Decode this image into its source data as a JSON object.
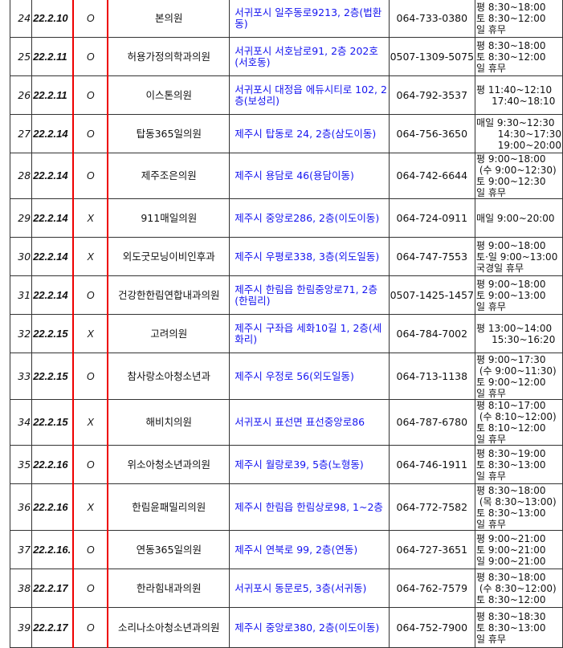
{
  "rows": [
    {
      "no": "24",
      "date": "22.2.10",
      "ox": "O",
      "name": "본의원",
      "address": "서귀포시  일주동로9213,  2층(법환동)",
      "phone": "064-733-0380",
      "hours": "평 8:30~18:00\n토 8:30~12:00\n일 휴무"
    },
    {
      "no": "25",
      "date": "22.2.11",
      "ox": "O",
      "name": "허용가정의학과의원",
      "address": "서귀포시 서호남로91, 2층 202호(서호동)",
      "phone": "0507-1309-5075",
      "hours": "평 8:30~18:00\n토 8:30~12:00\n일 휴무"
    },
    {
      "no": "26",
      "date": "22.2.11",
      "ox": "O",
      "name": "이스톤의원",
      "address": "서귀포시 대정읍 에듀시티로 102, 2층(보성리)",
      "phone": "064-792-3537",
      "hours": "평 11:40~12:10\n     17:40~18:10"
    },
    {
      "no": "27",
      "date": "22.2.14",
      "ox": "O",
      "name": "탑동365일의원",
      "address": "제주시 탑동로 24, 2층(삼도이동)",
      "phone": "064-756-3650",
      "hours": "매일 9:30~12:30\n       14:30~17:30\n       19:00~20:00"
    },
    {
      "no": "28",
      "date": "22.2.14",
      "ox": "O",
      "name": "제주조은의원",
      "address": "제주시 용담로 46(용담이동)",
      "phone": "064-742-6644",
      "hours": "평 9:00~18:00\n (수 9:00~12:30)\n토 9:00~12:30\n일 휴무"
    },
    {
      "no": "29",
      "date": "22.2.14",
      "ox": "X",
      "name": "911매일의원",
      "address": "제주시 중앙로286, 2층(이도이동)",
      "phone": "064-724-0911",
      "hours": "매일 9:00~20:00"
    },
    {
      "no": "30",
      "date": "22.2.14",
      "ox": "X",
      "name": "외도굿모닝이비인후과",
      "address": "제주시 우평로338, 3층(외도일동)",
      "phone": "064-747-7553",
      "hours": "평 9:00~18:00\n토·일 9:00~13:00\n국경일 휴무"
    },
    {
      "no": "31",
      "date": "22.2.14",
      "ox": "O",
      "name": "건강한한림연합내과의원",
      "address": "제주시 한림읍 한림중앙로71, 2층(한림리)",
      "phone": "0507-1425-1457",
      "hours": "평 9:00~18:00\n토 9:00~13:00\n일 휴무"
    },
    {
      "no": "32",
      "date": "22.2.15",
      "ox": "X",
      "name": "고려의원",
      "address": "제주시 구좌읍 세화10길 1, 2층(세화리)",
      "phone": "064-784-7002",
      "hours": "평 13:00~14:00\n     15:30~16:20"
    },
    {
      "no": "33",
      "date": "22.2.15",
      "ox": "O",
      "name": "참사랑소아청소년과",
      "address": "제주시 우정로 56(외도일동)",
      "phone": "064-713-1138",
      "hours": "평 9:00~17:30\n (수 9:00~11:30)\n토 9:00~12:00\n일 휴무"
    },
    {
      "no": "34",
      "date": "22.2.15",
      "ox": "X",
      "name": "해비치의원",
      "address": "서귀포시 표선면 표선중앙로86",
      "phone": "064-787-6780",
      "hours": "평 8:10~17:00\n (수 8:10~12:00)\n토 8:10~12:00\n일 휴무"
    },
    {
      "no": "35",
      "date": "22.2.16",
      "ox": "O",
      "name": "위소아청소년과의원",
      "address": "제주시 월랑로39, 5층(노형동)",
      "phone": "064-746-1911",
      "hours": "평 8:30~19:00\n토 8:30~13:00\n일 휴무"
    },
    {
      "no": "36",
      "date": "22.2.16",
      "ox": "X",
      "name": "한림윤패밀리의원",
      "address": "제주시 한림읍 한림상로98, 1~2층",
      "phone": "064-772-7582",
      "hours": "평 8:30~18:00\n (목 8:30~13:00)\n토 8:30~13:00\n일 휴무"
    },
    {
      "no": "37",
      "date": "22.2.16.",
      "ox": "O",
      "name": "연동365일의원",
      "address": "제주시 연북로 99, 2층(연동)",
      "phone": "064-727-3651",
      "hours": "평 9:00~21:00\n토 9:00~21:00\n일 9:00~21:00"
    },
    {
      "no": "38",
      "date": "22.2.17",
      "ox": "O",
      "name": "한라힘내과의원",
      "address": "서귀포시 동문로5, 3층(서귀동)",
      "phone": "064-762-7579",
      "hours": "평 8:30~18:00\n (수 8:30~12:00)\n토 8:30~12:00"
    },
    {
      "no": "39",
      "date": "22.2.17",
      "ox": "O",
      "name": "소리나소아청소년과의원",
      "address": "제주시 중앙로380, 2층(이도이동)",
      "phone": "064-752-7900",
      "hours": "평 8:30~18:30\n토 8:30~13:00\n일 휴무"
    }
  ]
}
